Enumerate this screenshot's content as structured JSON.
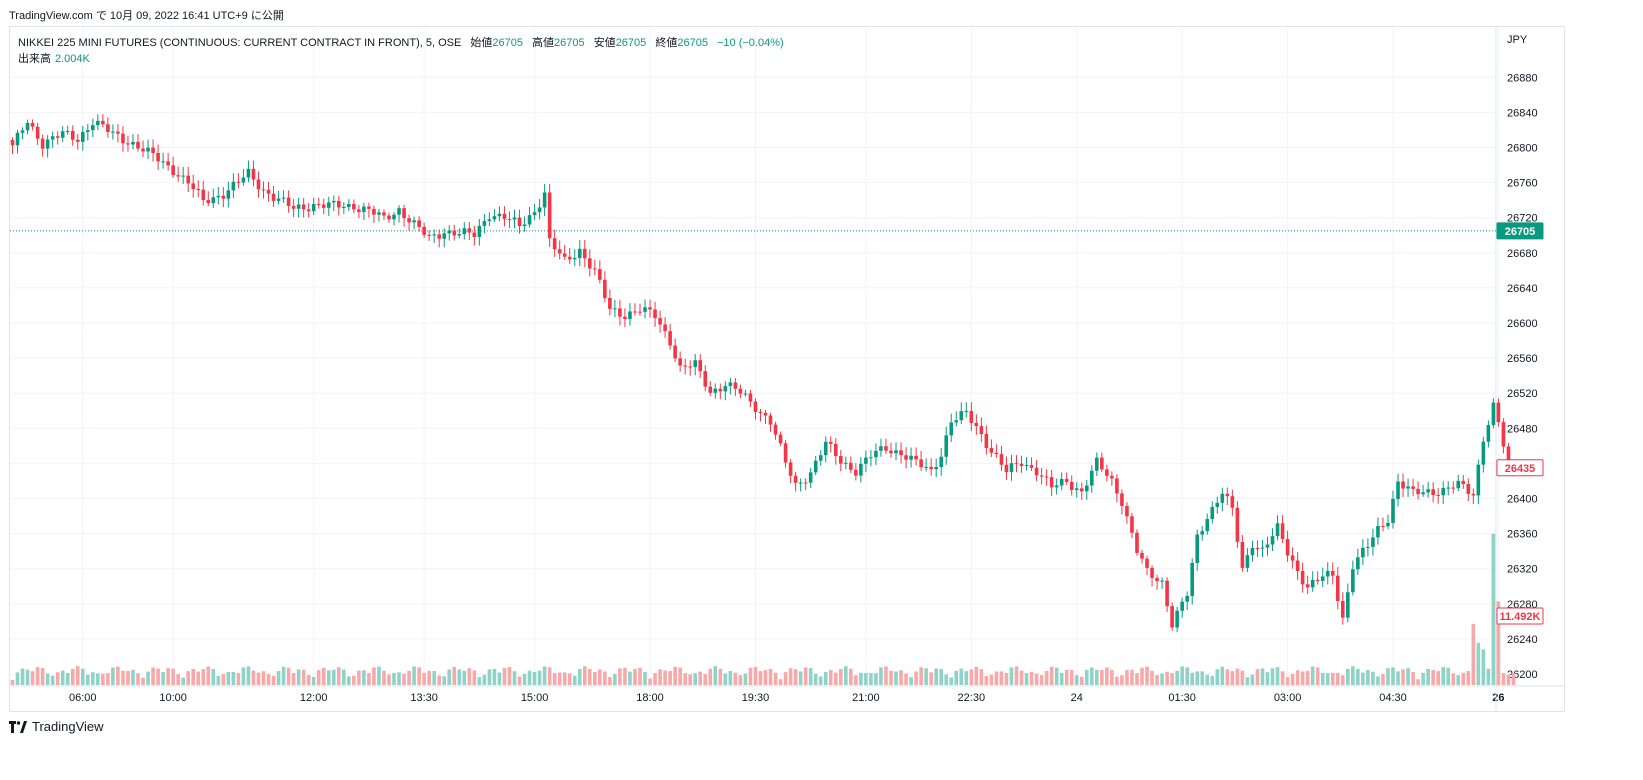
{
  "header": {
    "publish_line": "TradingView.com で 10月 09, 2022 16:41 UTC+9 に公開"
  },
  "legend": {
    "symbol": "NIKKEI 225 MINI FUTURES (CONTINUOUS: CURRENT CONTRACT IN FRONT), 5, OSE",
    "open_label": "始値",
    "open": "26705",
    "high_label": "高値",
    "high": "26705",
    "low_label": "安値",
    "low": "26705",
    "close_label": "終値",
    "close": "26705",
    "change": "−10 (−0.04%)",
    "volume_label": "出来高",
    "volume": "2.004K"
  },
  "footer": {
    "brand": "TradingView"
  },
  "colors": {
    "up": "#089981",
    "down": "#f23645",
    "up_volume": "#8fd2c7",
    "down_volume": "#f7a9a7",
    "grid": "#f0f3fa",
    "axis_text": "#131722"
  },
  "chart_data": {
    "type": "candlestick",
    "currency_label": "JPY",
    "y_ticks": [
      26880,
      26840,
      26800,
      26760,
      26720,
      26680,
      26640,
      26600,
      26560,
      26520,
      26480,
      26440,
      26400,
      26360,
      26320,
      26280,
      26240,
      26200
    ],
    "ylim": [
      26188,
      26896
    ],
    "x_ticks": [
      "06:00",
      "10:00",
      "12:00",
      "13:30",
      "15:00",
      "18:00",
      "19:30",
      "21:00",
      "22:30",
      "24",
      "01:30",
      "03:00",
      "04:30",
      "26"
    ],
    "x_tick_bars": [
      14,
      32,
      60,
      82,
      104,
      127,
      148,
      170,
      191,
      212,
      233,
      254,
      275,
      296
    ],
    "last_price_line": {
      "value": 26705,
      "label": "26705"
    },
    "price_marker": {
      "value": 26435,
      "label": "26435"
    },
    "volume_marker": {
      "label": "11.492K"
    },
    "close_path": [
      [
        0,
        26800
      ],
      [
        3,
        26830
      ],
      [
        6,
        26805
      ],
      [
        10,
        26815
      ],
      [
        13,
        26810
      ],
      [
        16,
        26830
      ],
      [
        20,
        26815
      ],
      [
        24,
        26805
      ],
      [
        28,
        26790
      ],
      [
        32,
        26775
      ],
      [
        35,
        26760
      ],
      [
        38,
        26738
      ],
      [
        42,
        26748
      ],
      [
        45,
        26760
      ],
      [
        47,
        26770
      ],
      [
        50,
        26752
      ],
      [
        53,
        26740
      ],
      [
        56,
        26730
      ],
      [
        60,
        26735
      ],
      [
        64,
        26733
      ],
      [
        68,
        26734
      ],
      [
        71,
        26728
      ],
      [
        74,
        26718
      ],
      [
        77,
        26730
      ],
      [
        80,
        26712
      ],
      [
        83,
        26696
      ],
      [
        86,
        26705
      ],
      [
        89,
        26702
      ],
      [
        92,
        26700
      ],
      [
        95,
        26725
      ],
      [
        98,
        26720
      ],
      [
        101,
        26710
      ],
      [
        104,
        26728
      ],
      [
        106,
        26748
      ],
      [
        107,
        26692
      ],
      [
        110,
        26670
      ],
      [
        113,
        26684
      ],
      [
        116,
        26658
      ],
      [
        119,
        26615
      ],
      [
        122,
        26610
      ],
      [
        125,
        26615
      ],
      [
        128,
        26608
      ],
      [
        131,
        26580
      ],
      [
        133,
        26548
      ],
      [
        136,
        26552
      ],
      [
        139,
        26522
      ],
      [
        142,
        26530
      ],
      [
        145,
        26520
      ],
      [
        148,
        26505
      ],
      [
        151,
        26488
      ],
      [
        154,
        26440
      ],
      [
        156,
        26415
      ],
      [
        159,
        26430
      ],
      [
        162,
        26462
      ],
      [
        165,
        26443
      ],
      [
        168,
        26432
      ],
      [
        171,
        26448
      ],
      [
        174,
        26458
      ],
      [
        177,
        26452
      ],
      [
        180,
        26440
      ],
      [
        183,
        26431
      ],
      [
        185,
        26452
      ],
      [
        187,
        26488
      ],
      [
        190,
        26496
      ],
      [
        192,
        26482
      ],
      [
        195,
        26455
      ],
      [
        198,
        26430
      ],
      [
        201,
        26442
      ],
      [
        204,
        26432
      ],
      [
        207,
        26412
      ],
      [
        210,
        26420
      ],
      [
        213,
        26408
      ],
      [
        216,
        26440
      ],
      [
        219,
        26420
      ],
      [
        221,
        26398
      ],
      [
        224,
        26340
      ],
      [
        226,
        26315
      ],
      [
        229,
        26305
      ],
      [
        231,
        26258
      ],
      [
        234,
        26290
      ],
      [
        236,
        26355
      ],
      [
        238,
        26380
      ],
      [
        241,
        26408
      ],
      [
        243,
        26386
      ],
      [
        245,
        26318
      ],
      [
        247,
        26350
      ],
      [
        249,
        26342
      ],
      [
        252,
        26365
      ],
      [
        254,
        26338
      ],
      [
        256,
        26318
      ],
      [
        258,
        26300
      ],
      [
        261,
        26310
      ],
      [
        263,
        26312
      ],
      [
        265,
        26264
      ],
      [
        267,
        26325
      ],
      [
        270,
        26345
      ],
      [
        272,
        26364
      ],
      [
        274,
        26378
      ],
      [
        276,
        26420
      ],
      [
        279,
        26405
      ],
      [
        282,
        26408
      ],
      [
        285,
        26410
      ],
      [
        288,
        26415
      ],
      [
        291,
        26405
      ],
      [
        293,
        26470
      ],
      [
        295,
        26505
      ],
      [
        296,
        26485
      ],
      [
        298,
        26435
      ]
    ],
    "volume_max": 22000,
    "volume_spikes": [
      [
        291,
        8400
      ],
      [
        292,
        5800
      ],
      [
        293,
        4900
      ],
      [
        295,
        20800
      ],
      [
        296,
        11492
      ]
    ]
  }
}
